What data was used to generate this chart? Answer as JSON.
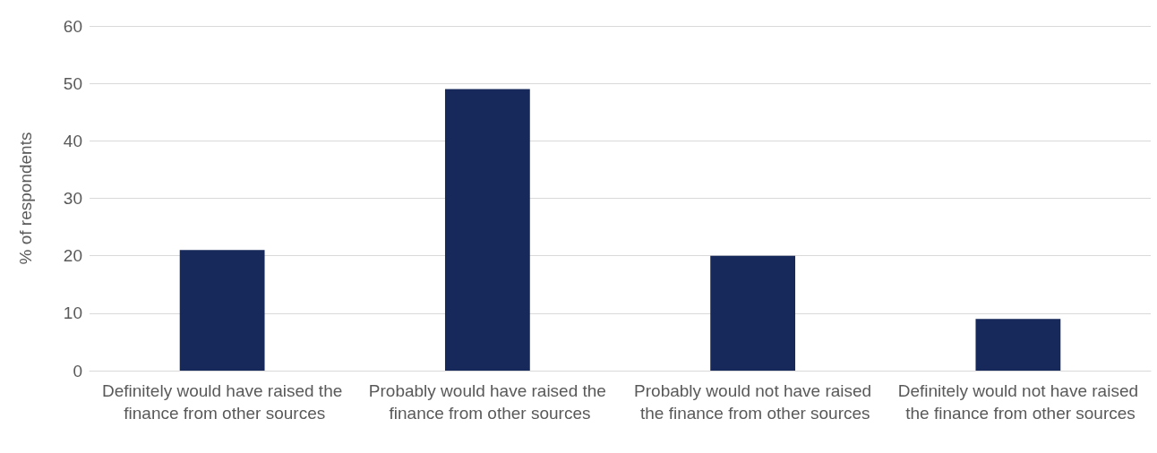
{
  "chart_data": {
    "type": "bar",
    "ylabel": "% of respondents",
    "categories": [
      "Definitely would have raised the finance from other sources",
      "Probably would have raised the finance from other sources",
      "Probably would not have raised the finance from other sources",
      "Definitely would not have raised the finance from other sources"
    ],
    "values": [
      21,
      49,
      20,
      9
    ],
    "color": "#16295a",
    "ylim": [
      0,
      60
    ],
    "yticks": [
      0,
      10,
      20,
      30,
      40,
      50,
      60
    ],
    "grid": "y"
  }
}
